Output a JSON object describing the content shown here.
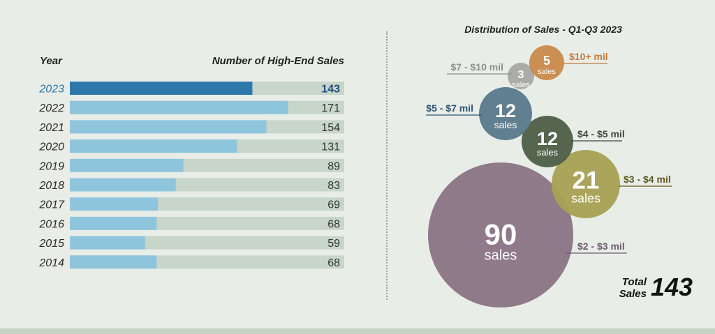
{
  "chart_data": [
    {
      "type": "bar",
      "orientation": "horizontal",
      "title": "",
      "row_header": "Year",
      "value_header": "Number of High-End Sales",
      "categories": [
        "2023",
        "2022",
        "2021",
        "2020",
        "2019",
        "2018",
        "2017",
        "2016",
        "2015",
        "2014"
      ],
      "values": [
        143,
        171,
        154,
        131,
        89,
        83,
        69,
        68,
        59,
        68
      ],
      "highlight": "2023",
      "xlim": [
        0,
        215
      ],
      "colors": {
        "bar": "#8ec5dd",
        "highlight_bar": "#2e78aa",
        "track": "#c8d5c9",
        "label": "#2a2a2a",
        "highlight_label": "#2e78aa",
        "highlight_value": "#1f4e7e"
      }
    },
    {
      "type": "bubble",
      "title": "Distribution of Sales - Q1-Q3 2023",
      "unit_label": "sales",
      "bubbles": [
        {
          "range": "$2 - $3 mil",
          "value": 90,
          "color": "#8a7586",
          "label_color": "#6e5a6e"
        },
        {
          "range": "$3 - $4 mil",
          "value": 21,
          "color": "#a7a155",
          "label_color": "#5e5a20"
        },
        {
          "range": "$4 - $5 mil",
          "value": 12,
          "color": "#4e5f48",
          "label_color": "#3f4a38"
        },
        {
          "range": "$5 - $7 mil",
          "value": 12,
          "color": "#5a7a8c",
          "label_color": "#2a5474"
        },
        {
          "range": "$7 - $10 mil",
          "value": 3,
          "color": "#a8a9a8",
          "label_color": "#8f8f8f"
        },
        {
          "range": "$10+ mil",
          "value": 5,
          "color": "#c98a4e",
          "label_color": "#c27c3a"
        }
      ],
      "total": {
        "line1": "Total",
        "line2": "Sales",
        "value": 143
      }
    }
  ]
}
